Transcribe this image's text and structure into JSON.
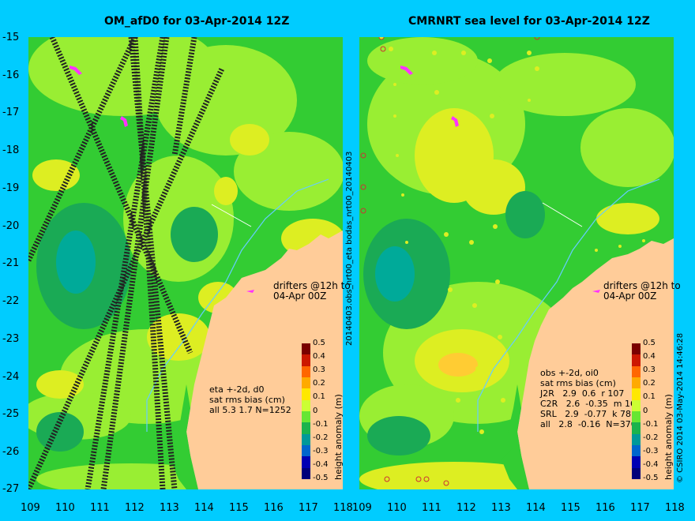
{
  "left_panel": {
    "title": "OM_afD0 for 03-Apr-2014 12Z",
    "drifters_note": "drifters @12h to\n04-Apr 00Z",
    "stats_lines": [
      "eta +-2d, d0",
      "sat rms bias (cm)",
      "all 5.3 1.7 N=1252"
    ]
  },
  "right_panel": {
    "title": "CMRNRT sea level  for 03-Apr-2014 12Z",
    "drifters_note": "drifters @12h to\n04-Apr 00Z",
    "stats_lines": [
      "obs +-2d, oi0",
      "sat rms bias (cm)",
      "J2R   2.9  0.6  r 107",
      "C2R   2.6  -0.35  m 16",
      "SRL   2.9  -0.77  k 78",
      "all   2.8  -0.16  N=370"
    ]
  },
  "axes": {
    "y_ticks": [
      "-15",
      "-16",
      "-17",
      "-18",
      "-19",
      "-20",
      "-21",
      "-22",
      "-23",
      "-24",
      "-25",
      "-26",
      "-27"
    ],
    "x_ticks_left": [
      "109",
      "110",
      "111",
      "112",
      "113",
      "114",
      "115",
      "116",
      "117",
      "118"
    ],
    "x_ticks_right": [
      "109",
      "110",
      "111",
      "112",
      "113",
      "114",
      "115",
      "116",
      "117",
      "118"
    ]
  },
  "colorbar": {
    "label": "height anomaly (m)",
    "ticks": [
      "0.5",
      "0.4",
      "0.3",
      "0.2",
      "0.1",
      "0",
      "-0.1",
      "-0.2",
      "-0.3",
      "-0.4",
      "-0.5"
    ],
    "colors": [
      "#7a0000",
      "#cc1800",
      "#ff6600",
      "#ffaa00",
      "#ffe800",
      "#ccff33",
      "#66e633",
      "#1ab34d",
      "#009999",
      "#0066cc",
      "#0000b3",
      "#00007a"
    ]
  },
  "side_labels": {
    "middle": "20140403.obs_nrt00_eta       bodas_nrt00_20140403",
    "right": "© CSIRO 2014   03-May-2014 14:46:28"
  },
  "colors": {
    "background": "#00ccff",
    "land": "#ffcc99",
    "ocean_base": "#33cc33",
    "light_green": "#99ee33",
    "yellow": "#ddee22",
    "blue_green": "#1aaa55",
    "track": "#222222",
    "drifter": "#ff33ff",
    "coast_line": "#66ccff"
  }
}
